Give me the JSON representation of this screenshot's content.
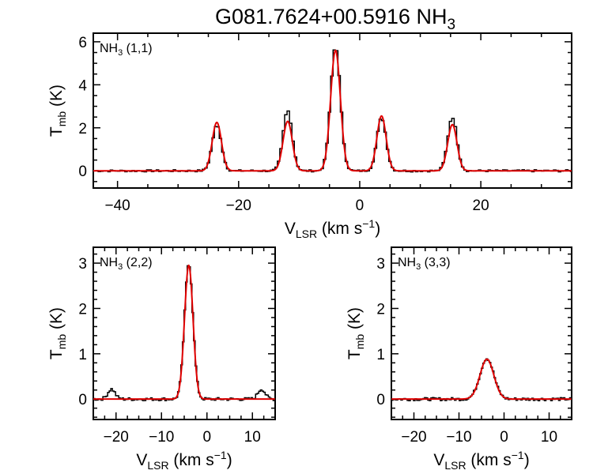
{
  "title": {
    "main": "G081.7624+00.5916 NH",
    "sub": "3"
  },
  "colors": {
    "observed": "#000000",
    "model": "#e00000",
    "axes": "#000000"
  },
  "chart_data": [
    {
      "type": "line",
      "panel_label": {
        "main": "NH",
        "sub": "3",
        "rest": " (1,1)"
      },
      "xlabel": {
        "main": "V",
        "sub": "LSR",
        "rest": " (km s",
        "sup": "−1",
        "end": ")"
      },
      "ylabel": {
        "main": "T",
        "sub": "mb",
        "rest": " (K)"
      },
      "xlim": [
        -44,
        35
      ],
      "ylim": [
        -0.8,
        6.4
      ],
      "xticks": [
        -40,
        -20,
        0,
        20
      ],
      "xtick_labels": [
        "−40",
        "−20",
        "0",
        "20"
      ],
      "yticks": [
        0,
        2,
        4,
        6
      ],
      "ytick_labels": [
        "0",
        "2",
        "4",
        "6"
      ],
      "components": [
        {
          "center": -23.6,
          "amp": 2.25,
          "fwhm": 1.8,
          "peak_obs": 2.1
        },
        {
          "center": -11.9,
          "amp": 2.3,
          "fwhm": 1.8,
          "peak_obs": 2.8
        },
        {
          "center": -4.0,
          "amp": 5.6,
          "fwhm": 1.9,
          "peak_obs": 5.8
        },
        {
          "center": 3.6,
          "amp": 2.55,
          "fwhm": 1.8,
          "peak_obs": 2.45
        },
        {
          "center": 15.3,
          "amp": 2.15,
          "fwhm": 1.8,
          "peak_obs": 2.5
        }
      ],
      "series": [
        {
          "name": "observed spectrum",
          "style": "histogram",
          "color": "#000000"
        },
        {
          "name": "model fit",
          "style": "line",
          "color": "#e00000"
        }
      ]
    },
    {
      "type": "line",
      "panel_label": {
        "main": "NH",
        "sub": "3",
        "rest": " (2,2)"
      },
      "xlabel": {
        "main": "V",
        "sub": "LSR",
        "rest": " (km s",
        "sup": "−1",
        "end": ")"
      },
      "ylabel": {
        "main": "T",
        "sub": "mb",
        "rest": " (K)"
      },
      "xlim": [
        -25,
        15
      ],
      "ylim": [
        -0.45,
        3.35
      ],
      "xticks": [
        -20,
        -10,
        0,
        10
      ],
      "xtick_labels": [
        "−20",
        "−10",
        "0",
        "10"
      ],
      "yticks": [
        0,
        1,
        2,
        3
      ],
      "ytick_labels": [
        "0",
        "1",
        "2",
        "3"
      ],
      "components": [
        {
          "center": -4.0,
          "amp": 2.95,
          "fwhm": 2.2,
          "peak_obs": 3.0
        }
      ],
      "satellite_bumps": [
        {
          "center": -21.0,
          "amp": 0.22
        },
        {
          "center": 12.0,
          "amp": 0.22
        }
      ],
      "series": [
        {
          "name": "observed spectrum",
          "style": "histogram",
          "color": "#000000"
        },
        {
          "name": "model fit",
          "style": "line",
          "color": "#e00000"
        }
      ]
    },
    {
      "type": "line",
      "panel_label": {
        "main": "NH",
        "sub": "3",
        "rest": " (3,3)"
      },
      "xlabel": {
        "main": "V",
        "sub": "LSR",
        "rest": " (km s",
        "sup": "−1",
        "end": ")"
      },
      "ylabel": {
        "main": "T",
        "sub": "mb",
        "rest": " (K)"
      },
      "xlim": [
        -25,
        15
      ],
      "ylim": [
        -0.45,
        3.35
      ],
      "xticks": [
        -20,
        -10,
        0,
        10
      ],
      "xtick_labels": [
        "−20",
        "−10",
        "0",
        "10"
      ],
      "yticks": [
        0,
        1,
        2,
        3
      ],
      "ytick_labels": [
        "0",
        "1",
        "2",
        "3"
      ],
      "components": [
        {
          "center": -3.8,
          "amp": 0.88,
          "fwhm": 3.6,
          "peak_obs": 0.9
        }
      ],
      "satellite_bumps": [],
      "series": [
        {
          "name": "observed spectrum",
          "style": "histogram",
          "color": "#000000"
        },
        {
          "name": "model fit",
          "style": "line",
          "color": "#e00000"
        }
      ]
    }
  ]
}
